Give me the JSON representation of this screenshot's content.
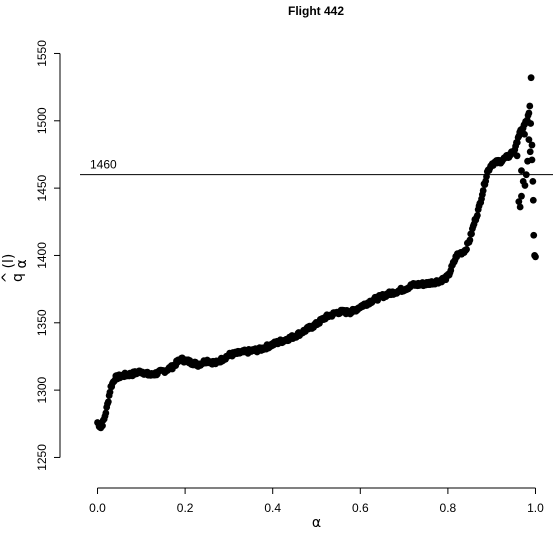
{
  "chart_data": {
    "type": "scatter",
    "title": "Flight 442",
    "xlabel": "α",
    "ylabel_main": "q",
    "ylabel_sub": "α",
    "ylabel_sup": "(l)",
    "ylabel_hat": "^",
    "xlim": [
      -0.04,
      1.04
    ],
    "ylim": [
      1234,
      1560
    ],
    "x_ticks": [
      0.0,
      0.2,
      0.4,
      0.6,
      0.8,
      1.0
    ],
    "x_tick_labels": [
      "0.0",
      "0.2",
      "0.4",
      "0.6",
      "0.8",
      "1.0"
    ],
    "y_ticks": [
      1250,
      1300,
      1350,
      1400,
      1450,
      1500,
      1550
    ],
    "y_tick_labels": [
      "1250",
      "1300",
      "1350",
      "1400",
      "1450",
      "1500",
      "1550"
    ],
    "hline": {
      "y": 1460,
      "label": "1460"
    },
    "grid": false,
    "legend": "none",
    "curve_knots": [
      [
        0.0,
        1276
      ],
      [
        0.008,
        1272
      ],
      [
        0.015,
        1278
      ],
      [
        0.022,
        1288
      ],
      [
        0.03,
        1302
      ],
      [
        0.04,
        1309
      ],
      [
        0.06,
        1311
      ],
      [
        0.08,
        1312
      ],
      [
        0.1,
        1314
      ],
      [
        0.12,
        1311
      ],
      [
        0.15,
        1314
      ],
      [
        0.17,
        1317
      ],
      [
        0.19,
        1323
      ],
      [
        0.21,
        1321
      ],
      [
        0.23,
        1319
      ],
      [
        0.25,
        1322
      ],
      [
        0.27,
        1320
      ],
      [
        0.3,
        1326
      ],
      [
        0.33,
        1328
      ],
      [
        0.35,
        1329
      ],
      [
        0.37,
        1330
      ],
      [
        0.4,
        1334
      ],
      [
        0.45,
        1340
      ],
      [
        0.5,
        1349
      ],
      [
        0.52,
        1354
      ],
      [
        0.55,
        1358
      ],
      [
        0.58,
        1358
      ],
      [
        0.6,
        1362
      ],
      [
        0.63,
        1367
      ],
      [
        0.66,
        1371
      ],
      [
        0.7,
        1375
      ],
      [
        0.72,
        1378
      ],
      [
        0.75,
        1379
      ],
      [
        0.78,
        1381
      ],
      [
        0.8,
        1384
      ],
      [
        0.81,
        1392
      ],
      [
        0.82,
        1400
      ],
      [
        0.84,
        1404
      ],
      [
        0.85,
        1412
      ],
      [
        0.86,
        1424
      ],
      [
        0.87,
        1434
      ],
      [
        0.88,
        1448
      ],
      [
        0.89,
        1462
      ],
      [
        0.9,
        1468
      ],
      [
        0.92,
        1470
      ],
      [
        0.94,
        1474
      ],
      [
        0.955,
        1480
      ],
      [
        0.96,
        1488
      ],
      [
        0.97,
        1494
      ],
      [
        0.98,
        1500
      ],
      [
        0.985,
        1505
      ]
    ],
    "extra_points": [
      [
        0.962,
        1440
      ],
      [
        0.965,
        1436
      ],
      [
        0.968,
        1444
      ],
      [
        0.972,
        1455
      ],
      [
        0.976,
        1452
      ],
      [
        0.979,
        1460
      ],
      [
        0.982,
        1470
      ],
      [
        0.985,
        1486
      ],
      [
        0.987,
        1511
      ],
      [
        0.989,
        1498
      ],
      [
        0.99,
        1532
      ],
      [
        0.992,
        1482
      ],
      [
        0.994,
        1455
      ],
      [
        0.995,
        1441
      ],
      [
        0.996,
        1415
      ],
      [
        0.998,
        1400
      ],
      [
        1.0,
        1399
      ],
      [
        0.992,
        1471
      ],
      [
        0.958,
        1474
      ],
      [
        0.975,
        1490
      ],
      [
        0.968,
        1463
      ],
      [
        0.988,
        1477
      ]
    ],
    "n_points": 520,
    "point_radius": 3.4
  }
}
